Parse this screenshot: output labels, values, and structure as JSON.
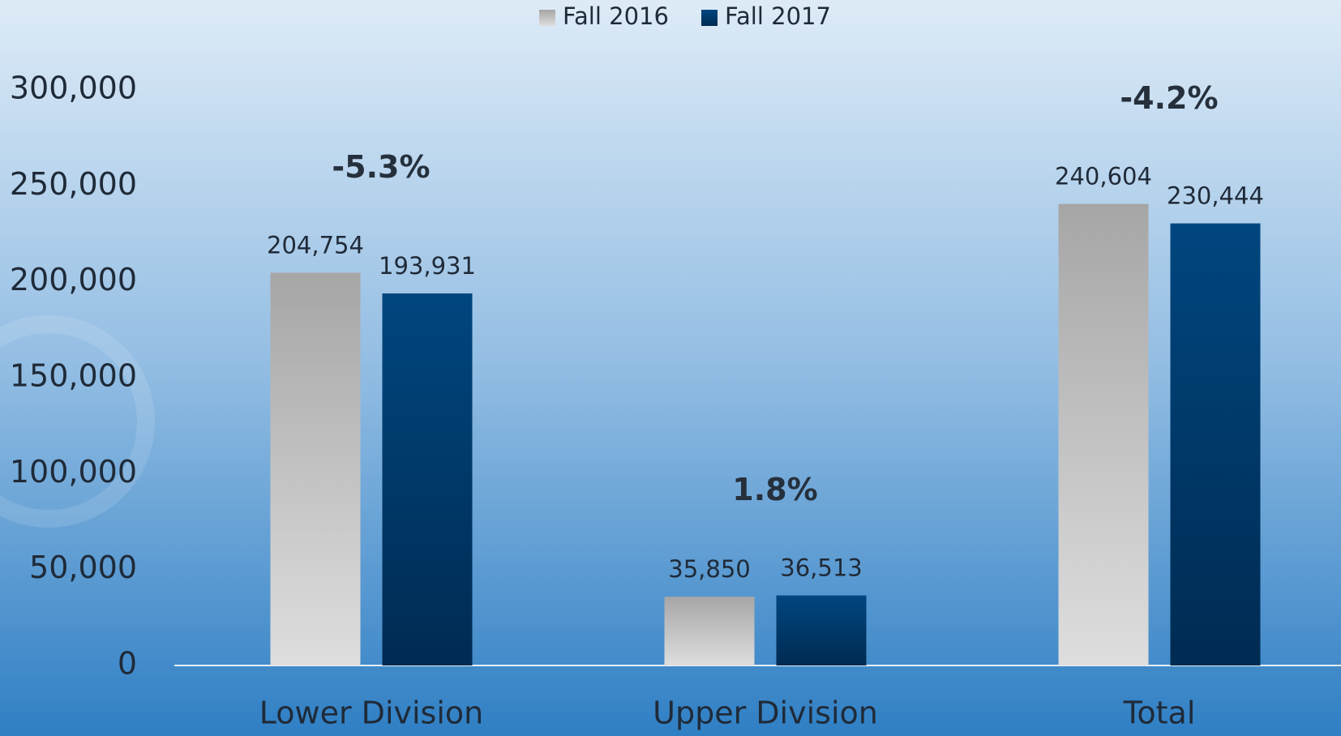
{
  "chart_data": {
    "type": "bar",
    "categories": [
      "Lower Division",
      "Upper Division",
      "Total"
    ],
    "series": [
      {
        "name": "Fall 2016",
        "color": "#a6a6a6",
        "values": [
          204754,
          35850,
          240604
        ],
        "value_labels": [
          "204,754",
          "35,850",
          "240,604"
        ]
      },
      {
        "name": "Fall 2017",
        "color": "#00467f",
        "values": [
          193931,
          36513,
          230444
        ],
        "value_labels": [
          "193,931",
          "36,513",
          "230,444"
        ]
      }
    ],
    "annotations": [
      "-5.3%",
      "1.8%",
      "-4.2%"
    ],
    "ylim": [
      0,
      300000
    ],
    "yticks": [
      0,
      {
        "value": 50000,
        "label": "50,000"
      },
      {
        "value": 100000,
        "label": "100,000"
      },
      {
        "value": 150000,
        "label": "150,000"
      },
      {
        "value": 200000,
        "label": "200,000"
      },
      {
        "value": 250000,
        "label": "250,000"
      },
      {
        "value": 300000,
        "label": "300,000"
      }
    ],
    "grid": false,
    "legend": "top"
  }
}
